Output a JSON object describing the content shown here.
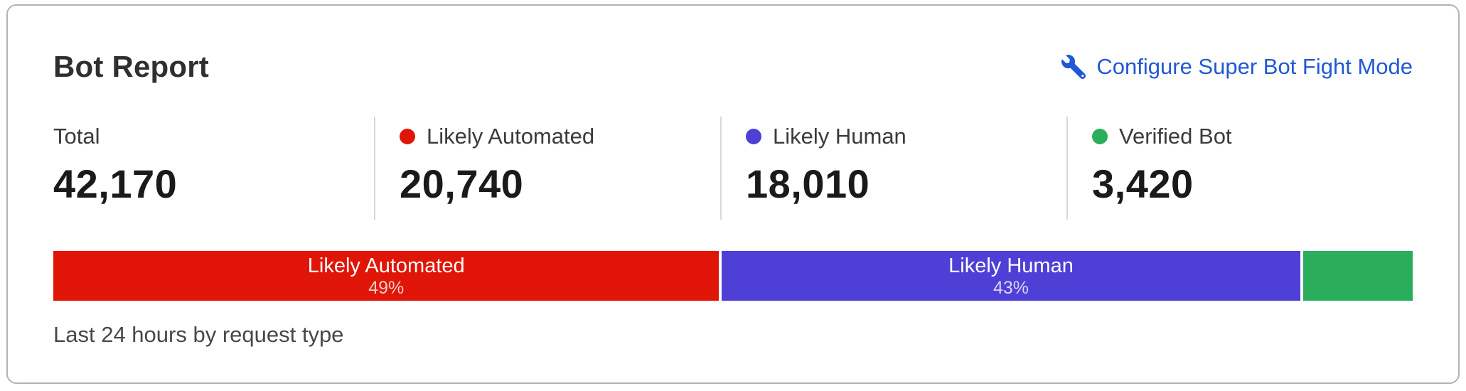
{
  "header": {
    "title": "Bot Report",
    "configure_link": {
      "icon": "wrench-icon",
      "label": "Configure Super Bot Fight Mode"
    }
  },
  "stats": [
    {
      "label": "Total",
      "value": "42,170",
      "dot": null
    },
    {
      "label": "Likely Automated",
      "value": "20,740",
      "dot": "#e01507"
    },
    {
      "label": "Likely Human",
      "value": "18,010",
      "dot": "#4e3fd6"
    },
    {
      "label": "Verified Bot",
      "value": "3,420",
      "dot": "#2bae5c"
    }
  ],
  "chart_data": {
    "type": "bar",
    "subtype": "horizontal-stacked-distribution",
    "title": "Bot Report",
    "caption": "Last 24 hours by request type",
    "total": 42170,
    "segments": [
      {
        "name": "Likely Automated",
        "value": 20740,
        "percent_label": "49%",
        "color": "#e01507",
        "label_visible": true
      },
      {
        "name": "Likely Human",
        "value": 18010,
        "percent_label": "43%",
        "color": "#4e3fd6",
        "label_visible": true
      },
      {
        "name": "Verified Bot",
        "value": 3420,
        "percent_label": "",
        "color": "#2bae5c",
        "label_visible": false
      }
    ]
  },
  "footer": {
    "note": "Last 24 hours by request type"
  },
  "colors": {
    "likely_automated": "#e01507",
    "likely_human": "#4e3fd6",
    "verified_bot": "#2bae5c",
    "link_blue": "#2059d4",
    "card_border": "#b3b3b3",
    "divider": "#d8d8d8"
  }
}
